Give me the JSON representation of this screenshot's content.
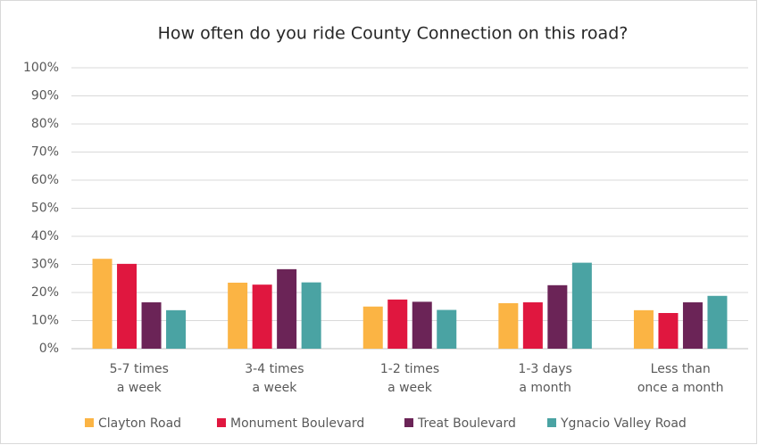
{
  "chart_data": {
    "type": "bar",
    "title": "How often do you ride County Connection on this road?",
    "categories": [
      [
        "5-7 times",
        "a week"
      ],
      [
        "3-4 times",
        "a week"
      ],
      [
        "1-2 times",
        "a week"
      ],
      [
        "1-3 days",
        "a month"
      ],
      [
        "Less than",
        "once a month"
      ]
    ],
    "series": [
      {
        "name": "Clayton Road",
        "color": "#fbb444",
        "values": [
          32,
          23.5,
          15,
          16.2,
          13.7
        ]
      },
      {
        "name": "Monument Boulevard",
        "color": "#e0173f",
        "values": [
          30.2,
          22.8,
          17.5,
          16.5,
          12.7
        ]
      },
      {
        "name": "Treat Boulevard",
        "color": "#6b2457",
        "values": [
          16.5,
          28.3,
          16.7,
          22.6,
          16.5
        ]
      },
      {
        "name": "Ygnacio Valley Road",
        "color": "#4aa3a3",
        "values": [
          13.7,
          23.6,
          13.8,
          30.6,
          18.8
        ]
      }
    ],
    "ylim": [
      0,
      100
    ],
    "yticks": [
      {
        "value": 0,
        "label": "0%"
      },
      {
        "value": 10,
        "label": "10%"
      },
      {
        "value": 20,
        "label": "20%"
      },
      {
        "value": 30,
        "label": "30%"
      },
      {
        "value": 40,
        "label": "40%"
      },
      {
        "value": 50,
        "label": "50%"
      },
      {
        "value": 60,
        "label": "60%"
      },
      {
        "value": 70,
        "label": "70%"
      },
      {
        "value": 80,
        "label": "80%"
      },
      {
        "value": 90,
        "label": "90%"
      },
      {
        "value": 100,
        "label": "100%"
      }
    ],
    "grid": true,
    "legend": "bottom"
  }
}
